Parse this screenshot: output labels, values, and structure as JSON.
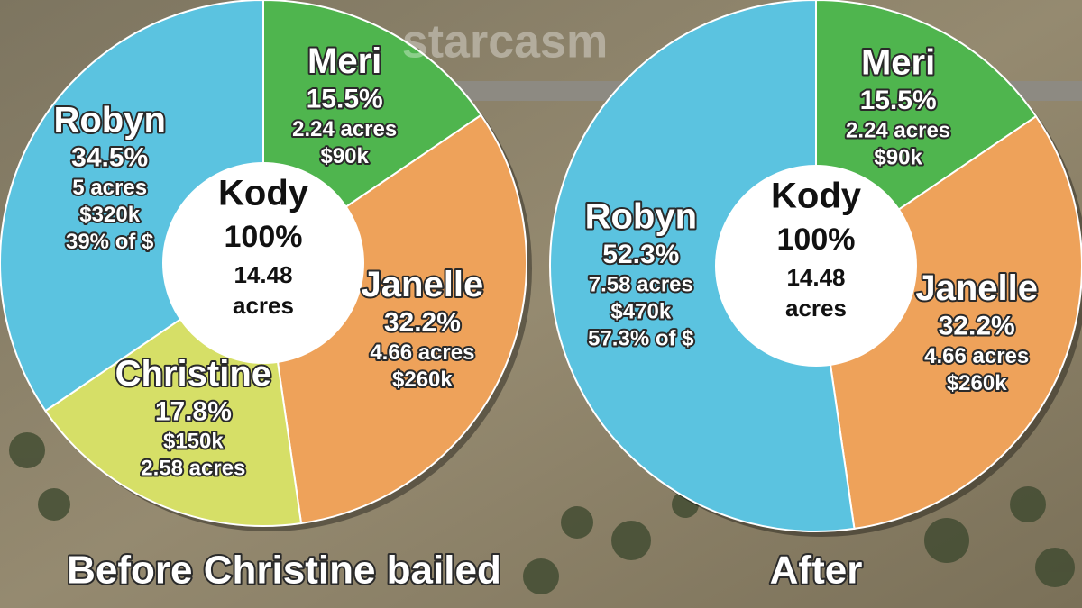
{
  "chart_data": [
    {
      "type": "pie",
      "title": "Before Christine bailed",
      "watermark": "starcasm",
      "categories": [
        "Meri",
        "Janelle",
        "Christine",
        "Robyn"
      ],
      "values": [
        15.5,
        32.2,
        17.8,
        34.5
      ],
      "value_labels": [
        "15.5%",
        "32.2%",
        "17.8%",
        "34.5%"
      ],
      "details": [
        [
          "2.24 acres",
          "$90k"
        ],
        [
          "4.66 acres",
          "$260k"
        ],
        [
          "$150k",
          "2.58 acres"
        ],
        [
          "5 acres",
          "$320k",
          "39% of $"
        ]
      ],
      "colors": [
        "#4fb54e",
        "#eea25a",
        "#d6df67",
        "#5bc3e0"
      ],
      "center_labels": [
        "Kody",
        "100%",
        "14.48",
        "acres"
      ]
    },
    {
      "type": "pie",
      "title": "After",
      "categories": [
        "Meri",
        "Janelle",
        "Robyn"
      ],
      "values": [
        15.5,
        32.2,
        52.3
      ],
      "value_labels": [
        "15.5%",
        "32.2%",
        "52.3%"
      ],
      "details": [
        [
          "2.24 acres",
          "$90k"
        ],
        [
          "4.66 acres",
          "$260k"
        ],
        [
          "7.58 acres",
          "$470k",
          "57.3% of $"
        ]
      ],
      "colors": [
        "#4fb54e",
        "#eea25a",
        "#5bc3e0"
      ],
      "center_labels": [
        "Kody",
        "100%",
        "14.48",
        "acres"
      ]
    }
  ]
}
